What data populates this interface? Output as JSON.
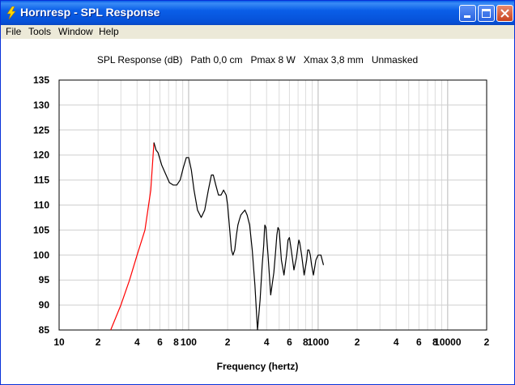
{
  "window": {
    "title": "Hornresp - SPL Response",
    "icon": "lightning-icon",
    "controls": [
      "minimize-icon",
      "maximize-icon",
      "close-icon"
    ]
  },
  "menu": {
    "items": [
      "File",
      "Tools",
      "Window",
      "Help"
    ]
  },
  "colors": {
    "titlebar": "#0a5ee8",
    "curve_low": "#ff0000",
    "curve": "#000000"
  },
  "chart_data": {
    "type": "line",
    "title": "SPL Response (dB)   Path 0,0 cm   Pmax 8 W   Xmax 3,8 mm   Unmasked",
    "xlabel": "Frequency (hertz)",
    "ylabel": "",
    "x_scale": "log",
    "xlim": [
      10,
      20000
    ],
    "ylim": [
      85,
      135
    ],
    "x_tick_labels": [
      {
        "value": 10,
        "label": "10"
      },
      {
        "value": 20,
        "label": "2"
      },
      {
        "value": 40,
        "label": "4"
      },
      {
        "value": 60,
        "label": "6"
      },
      {
        "value": 80,
        "label": "8"
      },
      {
        "value": 100,
        "label": "100"
      },
      {
        "value": 200,
        "label": "2"
      },
      {
        "value": 400,
        "label": "4"
      },
      {
        "value": 600,
        "label": "6"
      },
      {
        "value": 800,
        "label": "8"
      },
      {
        "value": 1000,
        "label": "1000"
      },
      {
        "value": 2000,
        "label": "2"
      },
      {
        "value": 4000,
        "label": "4"
      },
      {
        "value": 6000,
        "label": "6"
      },
      {
        "value": 8000,
        "label": "8"
      },
      {
        "value": 10000,
        "label": "10000"
      },
      {
        "value": 20000,
        "label": "2"
      }
    ],
    "y_ticks": [
      85,
      90,
      95,
      100,
      105,
      110,
      115,
      120,
      125,
      130,
      135
    ],
    "grid": true,
    "series": [
      {
        "color": "#ff0000",
        "x": [
          25,
          30,
          35,
          40,
          46,
          51,
          54
        ],
        "y": [
          85,
          90,
          95,
          100,
          105,
          113,
          122.5
        ]
      },
      {
        "color": "#000000",
        "x": [
          54,
          56,
          58,
          62,
          67,
          71,
          76,
          81,
          86,
          91,
          96,
          100,
          105,
          110,
          117,
          125,
          133,
          142,
          150,
          155,
          162,
          170,
          178,
          186,
          195,
          200,
          206,
          214,
          220,
          227,
          234,
          240,
          246,
          253,
          262,
          272,
          283,
          296,
          310,
          325,
          340,
          356,
          370,
          380,
          385,
          388,
          395,
          410,
          430,
          455,
          470,
          480,
          490,
          500,
          520,
          545,
          570,
          585,
          600,
          620,
          650,
          680,
          700,
          710,
          720,
          745,
          780,
          815,
          830,
          850,
          870,
          890,
          920,
          960,
          1000,
          1050,
          1100
        ],
        "y": [
          122.5,
          121,
          120.5,
          118,
          116,
          114.5,
          114,
          114,
          115,
          117.5,
          119.5,
          119.5,
          117,
          113,
          109,
          107.5,
          109,
          113,
          116,
          116,
          114,
          112,
          112,
          113,
          112,
          110,
          106,
          101,
          100,
          101,
          104,
          106,
          107,
          108,
          108.5,
          109,
          108,
          106,
          101,
          94,
          85,
          91,
          98,
          102,
          105,
          106,
          105.5,
          100,
          92,
          96.5,
          101,
          104,
          105.5,
          105,
          99,
          96,
          100,
          103,
          103.5,
          101,
          97,
          99.5,
          102,
          103,
          102.5,
          100,
          96,
          99,
          101,
          101,
          100,
          98,
          96,
          99,
          100,
          100,
          98
        ]
      }
    ]
  }
}
